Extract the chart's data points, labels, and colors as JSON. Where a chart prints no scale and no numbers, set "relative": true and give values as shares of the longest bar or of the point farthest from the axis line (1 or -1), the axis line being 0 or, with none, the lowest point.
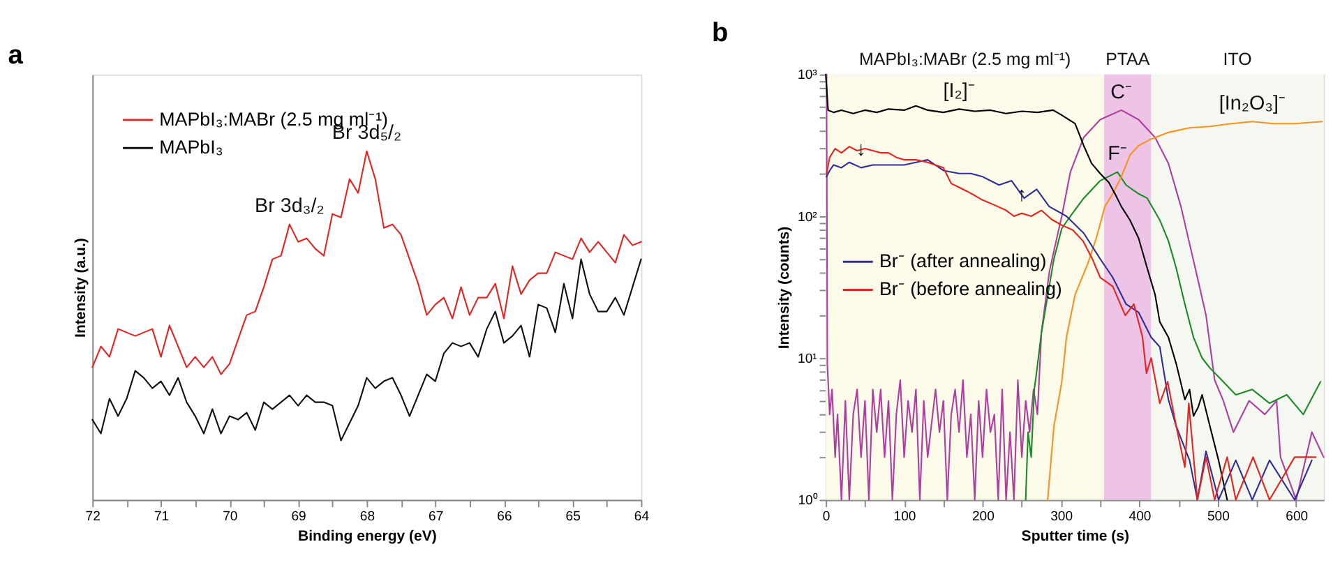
{
  "chart_data": [
    {
      "type": "line",
      "title": "a",
      "xlabel": "Binding energy (eV)",
      "ylabel": "Intensity (a.u.)",
      "relative": true,
      "tick_labels": "x",
      "legend": "top left",
      "xlim": [
        72,
        64
      ],
      "xticks": [
        72,
        {
          "value": 71.5,
          "label": null
        },
        71,
        {
          "value": 70.5,
          "label": null
        },
        70,
        {
          "value": 69.5,
          "label": null
        },
        69,
        {
          "value": 68.5,
          "label": null
        },
        68,
        {
          "value": 67.5,
          "label": null
        },
        67,
        {
          "value": 66.5,
          "label": null
        },
        66,
        {
          "value": 65.5,
          "label": null
        },
        65,
        {
          "value": 64.5,
          "label": null
        },
        64
      ],
      "x": [
        72,
        71.875,
        71.75,
        71.625,
        71.5,
        71.375,
        71.25,
        71.125,
        71,
        70.875,
        70.75,
        70.625,
        70.5,
        70.375,
        70.25,
        70.125,
        70,
        69.875,
        69.75,
        69.625,
        69.5,
        69.375,
        69.25,
        69.125,
        69,
        68.875,
        68.75,
        68.625,
        68.5,
        68.375,
        68.25,
        68.125,
        68,
        67.875,
        67.75,
        67.625,
        67.5,
        67.375,
        67.25,
        67.125,
        67,
        66.875,
        66.75,
        66.625,
        66.5,
        66.375,
        66.25,
        66.125,
        66,
        65.875,
        65.75,
        65.625,
        65.5,
        65.375,
        65.25,
        65.125,
        65,
        64.875,
        64.75,
        64.625,
        64.5,
        64.375,
        64.25,
        64.125,
        64
      ],
      "series": [
        {
          "name": "MAPbI₃:MABr (2.5 mg ml⁻¹)",
          "color": "#e8231f",
          "values": [
            0.38,
            0.44,
            0.41,
            0.49,
            0.48,
            0.47,
            0.48,
            0.49,
            0.41,
            0.5,
            0.44,
            0.38,
            0.41,
            0.38,
            0.41,
            0.36,
            0.39,
            0.46,
            0.53,
            0.54,
            0.61,
            0.69,
            0.7,
            0.79,
            0.74,
            0.75,
            0.72,
            0.7,
            0.82,
            0.81,
            0.92,
            0.88,
            1.0,
            0.92,
            0.78,
            0.79,
            0.76,
            0.69,
            0.62,
            0.53,
            0.56,
            0.58,
            0.52,
            0.61,
            0.53,
            0.58,
            0.58,
            0.62,
            0.52,
            0.67,
            0.59,
            0.63,
            0.65,
            0.65,
            0.71,
            0.7,
            0.69,
            0.75,
            0.71,
            0.74,
            0.71,
            0.68,
            0.76,
            0.73,
            0.74
          ]
        },
        {
          "name": "MAPbI₃",
          "color": "#111111",
          "values": [
            0.23,
            0.19,
            0.29,
            0.24,
            0.29,
            0.37,
            0.35,
            0.32,
            0.34,
            0.3,
            0.35,
            0.28,
            0.24,
            0.19,
            0.26,
            0.19,
            0.24,
            0.23,
            0.25,
            0.2,
            0.28,
            0.26,
            0.28,
            0.3,
            0.27,
            0.3,
            0.28,
            0.28,
            0.27,
            0.17,
            0.22,
            0.27,
            0.35,
            0.32,
            0.34,
            0.35,
            0.3,
            0.24,
            0.3,
            0.36,
            0.34,
            0.42,
            0.45,
            0.44,
            0.45,
            0.41,
            0.49,
            0.54,
            0.45,
            0.47,
            0.5,
            0.41,
            0.56,
            0.55,
            0.48,
            0.62,
            0.52,
            0.69,
            0.59,
            0.54,
            0.54,
            0.58,
            0.53,
            0.61,
            0.69
          ]
        }
      ],
      "annotations": [
        {
          "text": "Br 3d₃/₂",
          "x": 69.125,
          "y": 0.79
        },
        {
          "text": "Br 3d₅/₂",
          "x": 68,
          "y": 1.0
        }
      ]
    },
    {
      "type": "line",
      "title": "b",
      "xlabel": "Sputter time (s)",
      "ylabel": "Intensity (counts)",
      "log": "y",
      "legend": "left",
      "xlim": [
        0,
        635
      ],
      "xticks": [
        0,
        {
          "value": 50,
          "label": null
        },
        100,
        {
          "value": 150,
          "label": null
        },
        200,
        {
          "value": 250,
          "label": null
        },
        300,
        {
          "value": 350,
          "label": null
        },
        400,
        {
          "value": 450,
          "label": null
        },
        500,
        {
          "value": 550,
          "label": null
        },
        600
      ],
      "ylim": [
        1,
        1000
      ],
      "yticks": [
        {
          "value": 1,
          "label": "10⁰"
        },
        {
          "value": 2,
          "label": null
        },
        {
          "value": 3,
          "label": null
        },
        {
          "value": 4,
          "label": null
        },
        {
          "value": 5,
          "label": null
        },
        {
          "value": 6,
          "label": null
        },
        {
          "value": 7,
          "label": null
        },
        {
          "value": 8,
          "label": null
        },
        {
          "value": 9,
          "label": null
        },
        {
          "value": 10,
          "label": "10¹"
        },
        {
          "value": 20,
          "label": null
        },
        {
          "value": 30,
          "label": null
        },
        {
          "value": 40,
          "label": null
        },
        {
          "value": 50,
          "label": null
        },
        {
          "value": 60,
          "label": null
        },
        {
          "value": 70,
          "label": null
        },
        {
          "value": 80,
          "label": null
        },
        {
          "value": 90,
          "label": null
        },
        {
          "value": 100,
          "label": "10²"
        },
        {
          "value": 200,
          "label": null
        },
        {
          "value": 300,
          "label": null
        },
        {
          "value": 400,
          "label": null
        },
        {
          "value": 500,
          "label": null
        },
        {
          "value": 600,
          "label": null
        },
        {
          "value": 700,
          "label": null
        },
        {
          "value": 800,
          "label": null
        },
        {
          "value": 900,
          "label": null
        },
        {
          "value": 1000,
          "label": "10³"
        }
      ],
      "bands": [
        {
          "axis": "x",
          "from": 0,
          "to": 355,
          "label": "MAPbI₃:MABr (2.5 mg ml⁻¹)",
          "color": "#fcfbe9"
        },
        {
          "axis": "x",
          "from": 355,
          "to": 415,
          "label": "PTAA",
          "color": "#edc4e5"
        },
        {
          "axis": "x",
          "from": 415,
          "to": 635,
          "label": "ITO",
          "color": "#f5f8f0"
        }
      ],
      "series": [
        {
          "color": "#b03da0",
          "x": [
            1,
            2,
            5,
            8,
            12,
            15,
            20,
            25,
            30,
            35,
            40,
            45,
            50,
            55,
            60,
            65,
            70,
            75,
            80,
            85,
            90,
            95,
            100,
            105,
            110,
            115,
            120,
            125,
            130,
            140,
            145,
            150,
            155,
            160,
            165,
            170,
            175,
            180,
            185,
            190,
            195,
            200,
            205,
            210,
            215,
            220,
            225,
            230,
            235,
            240,
            245,
            250,
            255,
            260,
            265,
            270,
            275,
            285,
            291,
            301,
            312,
            329,
            350,
            377,
            399,
            420,
            437,
            453,
            474,
            485,
            496,
            507,
            520,
            540,
            560,
            575,
            580,
            600,
            620,
            635
          ],
          "values": [
            1000,
            9,
            4,
            6,
            2,
            4,
            1,
            5,
            1,
            4,
            6,
            2,
            5,
            1,
            6,
            3,
            6,
            2,
            5,
            1,
            4,
            7,
            2,
            5,
            3,
            6,
            1,
            5,
            2,
            6,
            3,
            5,
            1,
            4,
            6,
            3,
            7,
            2,
            4,
            1,
            5,
            2,
            6,
            3,
            4,
            1,
            6,
            1,
            3,
            1,
            7,
            2,
            5,
            3,
            6,
            4,
            15,
            40,
            57,
            100,
            205,
            360,
            480,
            560,
            480,
            360,
            236,
            117,
            37,
            20,
            7,
            5,
            3,
            5,
            4,
            5,
            2,
            1,
            3,
            2
          ]
        },
        {
          "color": "#1a8a2a",
          "x": [
            255,
            258,
            262,
            266,
            269,
            275,
            291,
            301,
            312,
            329,
            350,
            372,
            383,
            399,
            410,
            426,
            437,
            447,
            458,
            469,
            480,
            490,
            507,
            523,
            544,
            566,
            588,
            609,
            631
          ],
          "values": [
            1,
            3,
            2,
            6,
            8,
            15,
            50,
            82,
            100,
            134,
            178,
            205,
            166,
            144,
            134,
            94,
            67,
            43,
            24,
            14,
            10,
            8.5,
            6.8,
            5.5,
            6,
            4.8,
            5.5,
            4,
            6.8
          ]
        },
        {
          "color": "#f7931e",
          "x": [
            283,
            291,
            301,
            307,
            318,
            334,
            345,
            356,
            366,
            377,
            388,
            399,
            415,
            437,
            464,
            490,
            517,
            544,
            571,
            598,
            633
          ],
          "values": [
            1,
            3.3,
            6.8,
            14,
            28,
            46,
            70,
            117,
            144,
            190,
            270,
            315,
            350,
            390,
            420,
            430,
            450,
            465,
            450,
            450,
            465
          ]
        },
        {
          "color": "#000000",
          "x": [
            0,
            3,
            10,
            20,
            35,
            50,
            65,
            80,
            100,
            115,
            130,
            150,
            170,
            190,
            210,
            230,
            250,
            270,
            290,
            300,
            318,
            329,
            339,
            350,
            361,
            370,
            377,
            388,
            399,
            410,
            420,
            426,
            437,
            447,
            458,
            464,
            469,
            475,
            480,
            490,
            501,
            512
          ],
          "values": [
            1000,
            560,
            540,
            560,
            530,
            560,
            540,
            570,
            560,
            600,
            560,
            540,
            570,
            550,
            560,
            530,
            550,
            540,
            560,
            520,
            450,
            315,
            236,
            200,
            173,
            140,
            117,
            94,
            70,
            43,
            28,
            18,
            14,
            9.1,
            5.1,
            6,
            3.9,
            4.5,
            5.5,
            3.3,
            1.9,
            1
          ]
        },
        {
          "name": "Br⁻ (after annealing)",
          "color": "#2e2e9c",
          "x": [
            1,
            5,
            10,
            20,
            30,
            45,
            60,
            80,
            100,
            115,
            130,
            150,
            170,
            185,
            200,
            221,
            237,
            253,
            269,
            285,
            307,
            329,
            350,
            366,
            383,
            399,
            415,
            426,
            437,
            447,
            464,
            474,
            485,
            501,
            523,
            544,
            566,
            598,
            620
          ],
          "values": [
            190,
            210,
            230,
            220,
            240,
            220,
            230,
            230,
            230,
            240,
            250,
            210,
            200,
            200,
            190,
            166,
            178,
            134,
            155,
            117,
            100,
            76,
            50,
            37,
            24,
            21,
            14,
            12,
            5.1,
            3.3,
            1.9,
            1,
            2.2,
            1,
            1.9,
            1,
            1.9,
            1,
            1.9
          ]
        },
        {
          "name": "Br⁻ (before annealing)",
          "color": "#e8231f",
          "x": [
            1,
            5,
            12,
            20,
            30,
            40,
            50,
            60,
            70,
            80,
            90,
            100,
            115,
            130,
            150,
            160,
            170,
            180,
            190,
            200,
            215,
            230,
            240,
            250,
            262,
            275,
            288,
            300,
            315,
            328,
            340,
            350,
            366,
            382,
            393,
            404,
            409,
            415,
            426,
            436,
            447,
            458,
            463,
            474,
            485,
            496,
            512,
            523,
            545,
            566,
            598,
            625
          ],
          "values": [
            200,
            260,
            300,
            280,
            310,
            290,
            300,
            290,
            280,
            280,
            260,
            250,
            250,
            240,
            220,
            170,
            160,
            150,
            140,
            130,
            120,
            110,
            100,
            105,
            100,
            110,
            95,
            87,
            80,
            67,
            50,
            37,
            32,
            20,
            24,
            14,
            7.8,
            10,
            4.8,
            6.8,
            3.3,
            1.7,
            4.8,
            1,
            2,
            1,
            2,
            1,
            2,
            1,
            2,
            2
          ]
        }
      ],
      "annotations": [
        {
          "text": "[I₂]⁻",
          "x": 170,
          "y": 570
        },
        {
          "text": "C⁻",
          "x": 377,
          "y": 560
        },
        {
          "text": "F⁻",
          "x": 372,
          "y": 205
        },
        {
          "text": "[In₂O₃]⁻",
          "x": 544,
          "y": 465
        },
        {
          "text": "↓",
          "x": 45,
          "y": 220
        },
        {
          "text": "↑",
          "x": 250,
          "y": 105
        }
      ]
    }
  ]
}
